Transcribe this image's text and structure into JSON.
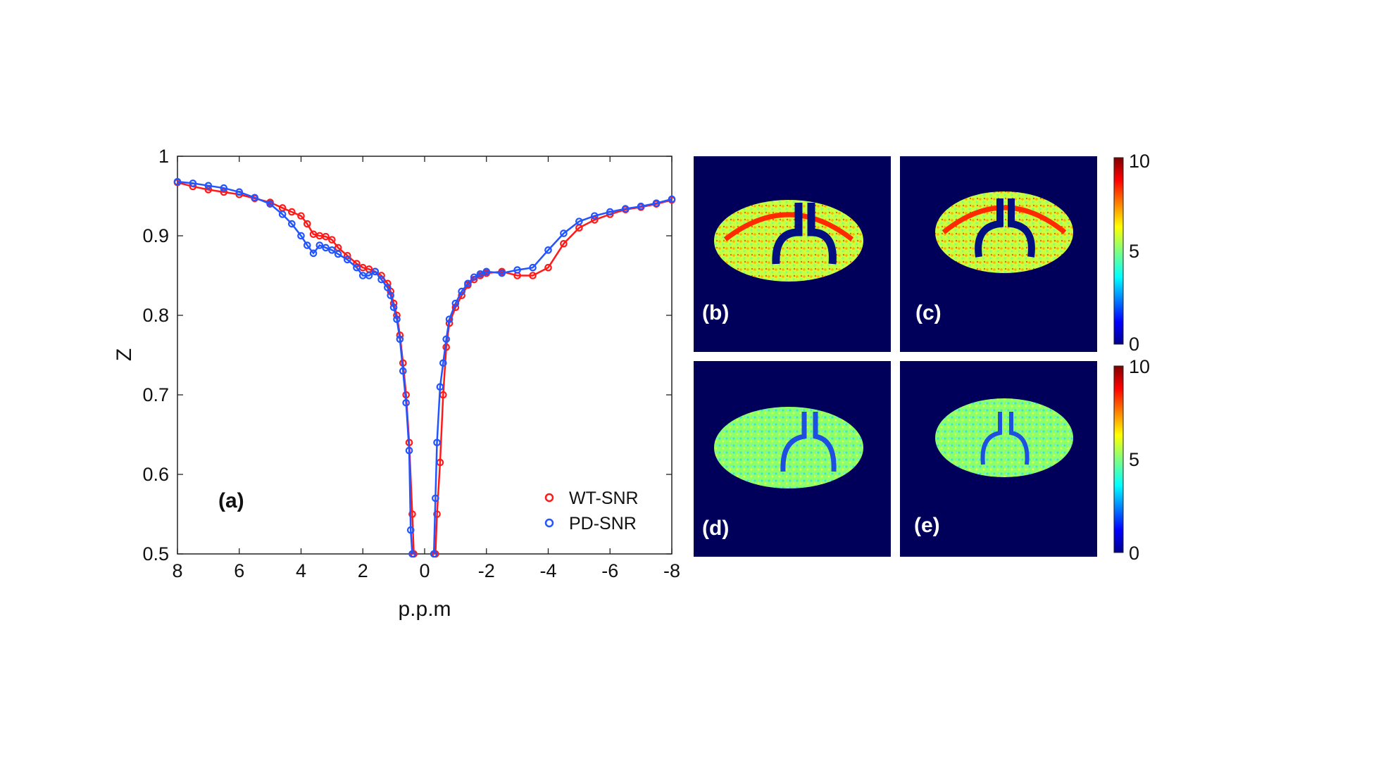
{
  "chart_data": {
    "type": "scatter",
    "panel_label": "(a)",
    "xlabel": "p.p.m",
    "ylabel": "Z",
    "xlim": [
      8,
      -8
    ],
    "ylim": [
      0.5,
      1
    ],
    "x_ticks": [
      8,
      6,
      4,
      2,
      0,
      -2,
      -4,
      -6,
      -8
    ],
    "x_tick_labels": [
      "8",
      "6",
      "4",
      "2",
      "0",
      "-2",
      "-4",
      "-6",
      "-8"
    ],
    "y_ticks": [
      0.5,
      0.6,
      0.7,
      0.8,
      0.9,
      1
    ],
    "y_tick_labels": [
      "0.5",
      "0.6",
      "0.7",
      "0.8",
      "0.9",
      "1"
    ],
    "legend": [
      "WT-SNR",
      "PD-SNR"
    ],
    "legend_position": "bottom-right",
    "series": [
      {
        "name": "WT-SNR",
        "color": "#ff1a1a",
        "x": [
          8,
          7.5,
          7,
          6.5,
          6,
          5.5,
          5,
          4.6,
          4.3,
          4,
          3.8,
          3.6,
          3.4,
          3.2,
          3,
          2.8,
          2.5,
          2.2,
          2,
          1.8,
          1.6,
          1.4,
          1.2,
          1.1,
          1,
          0.9,
          0.8,
          0.7,
          0.6,
          0.5,
          0.4,
          0.35,
          -0.35,
          -0.4,
          -0.5,
          -0.6,
          -0.7,
          -0.8,
          -1,
          -1.2,
          -1.4,
          -1.6,
          -1.8,
          -2,
          -2.5,
          -3,
          -3.5,
          -4,
          -4.5,
          -5,
          -5.5,
          -6,
          -6.5,
          -7,
          -7.5,
          -8
        ],
        "y": [
          0.967,
          0.962,
          0.958,
          0.955,
          0.952,
          0.947,
          0.942,
          0.935,
          0.93,
          0.925,
          0.915,
          0.902,
          0.9,
          0.899,
          0.895,
          0.885,
          0.875,
          0.865,
          0.86,
          0.858,
          0.855,
          0.85,
          0.84,
          0.83,
          0.815,
          0.8,
          0.775,
          0.74,
          0.7,
          0.64,
          0.55,
          0.5,
          0.5,
          0.55,
          0.615,
          0.7,
          0.76,
          0.79,
          0.81,
          0.825,
          0.838,
          0.845,
          0.85,
          0.853,
          0.855,
          0.85,
          0.85,
          0.86,
          0.89,
          0.91,
          0.92,
          0.927,
          0.933,
          0.936,
          0.94,
          0.945
        ]
      },
      {
        "name": "PD-SNR",
        "color": "#2255ff",
        "x": [
          8,
          7.5,
          7,
          6.5,
          6,
          5.5,
          5,
          4.6,
          4.3,
          4,
          3.8,
          3.6,
          3.4,
          3.2,
          3,
          2.8,
          2.5,
          2.2,
          2,
          1.8,
          1.6,
          1.4,
          1.2,
          1.1,
          1,
          0.9,
          0.8,
          0.7,
          0.6,
          0.5,
          0.45,
          0.4,
          -0.3,
          -0.35,
          -0.4,
          -0.5,
          -0.6,
          -0.7,
          -0.8,
          -1,
          -1.2,
          -1.4,
          -1.6,
          -1.8,
          -2,
          -2.5,
          -3,
          -3.5,
          -4,
          -4.5,
          -5,
          -5.5,
          -6,
          -6.5,
          -7,
          -7.5,
          -8
        ],
        "y": [
          0.968,
          0.966,
          0.963,
          0.96,
          0.955,
          0.948,
          0.94,
          0.927,
          0.915,
          0.9,
          0.888,
          0.878,
          0.888,
          0.885,
          0.882,
          0.877,
          0.87,
          0.86,
          0.85,
          0.85,
          0.855,
          0.845,
          0.835,
          0.825,
          0.81,
          0.795,
          0.77,
          0.73,
          0.69,
          0.63,
          0.53,
          0.5,
          0.5,
          0.57,
          0.64,
          0.71,
          0.74,
          0.77,
          0.795,
          0.815,
          0.83,
          0.84,
          0.848,
          0.852,
          0.855,
          0.853,
          0.857,
          0.86,
          0.882,
          0.903,
          0.918,
          0.925,
          0.93,
          0.934,
          0.937,
          0.941,
          0.946
        ]
      }
    ]
  },
  "maps": {
    "panels": [
      {
        "label": "(b)",
        "pattern": "wt-high"
      },
      {
        "label": "(c)",
        "pattern": "wt-high-wide"
      },
      {
        "label": "(d)",
        "pattern": "pd-low"
      },
      {
        "label": "(e)",
        "pattern": "pd-low-wide"
      }
    ],
    "colorbars": [
      {
        "tick_labels": [
          "10",
          "5",
          "0"
        ]
      },
      {
        "tick_labels": [
          "10",
          "5",
          "0"
        ]
      }
    ],
    "background_color": "#00005a"
  }
}
